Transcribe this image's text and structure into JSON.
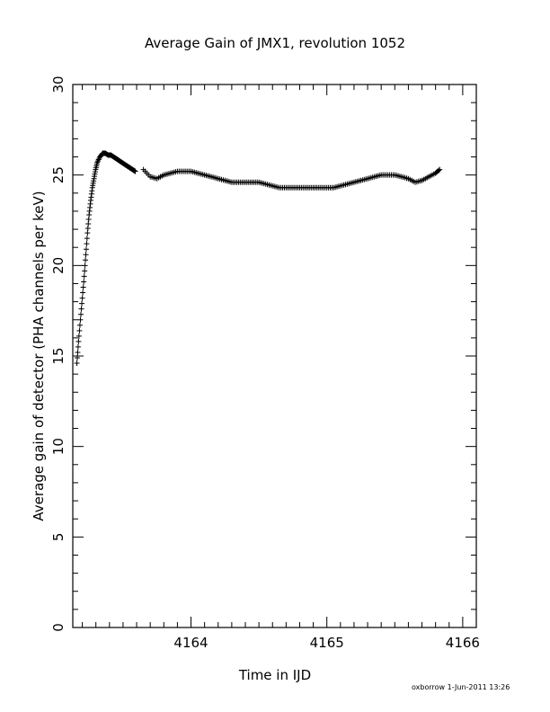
{
  "chart_data": {
    "type": "scatter",
    "title": "Average Gain of JMX1, revolution 1052",
    "xlabel": "Time in IJD",
    "ylabel": "Average gain of detector (PHA channels per keV)",
    "xlim": [
      4163.13,
      4166.1
    ],
    "ylim": [
      0,
      30
    ],
    "x_ticks": [
      4164,
      4165,
      4166
    ],
    "x_tick_labels": [
      "4164",
      "4165",
      "4166"
    ],
    "y_ticks": [
      0,
      5,
      10,
      15,
      20,
      25,
      30
    ],
    "y_tick_labels": [
      "0",
      "5",
      "10",
      "15",
      "20",
      "25",
      "30"
    ],
    "marker": "+",
    "grid": false,
    "series": [
      {
        "x": [
          4163.16,
          4163.172,
          4163.186,
          4163.2,
          4163.214,
          4163.226,
          4163.238,
          4163.25,
          4163.262,
          4163.274,
          4163.286,
          4163.298,
          4163.31,
          4163.33,
          4163.35,
          4163.37,
          4163.39,
          4163.41,
          4163.43,
          4163.45,
          4163.47,
          4163.49,
          4163.51,
          4163.53,
          4163.55,
          4163.57,
          4163.59
        ],
        "y": [
          14.6,
          15.8,
          17.0,
          18.2,
          19.4,
          20.6,
          21.8,
          22.8,
          23.6,
          24.3,
          24.8,
          25.3,
          25.7,
          26.0,
          26.2,
          26.2,
          26.1,
          26.1,
          26.0,
          25.9,
          25.8,
          25.7,
          25.6,
          25.5,
          25.4,
          25.3,
          25.2
        ]
      },
      {
        "x": [
          4163.65,
          4163.7,
          4163.75,
          4163.8,
          4163.85,
          4163.9,
          4163.95,
          4164.0,
          4164.05,
          4164.1,
          4164.15,
          4164.2,
          4164.25,
          4164.3,
          4164.35,
          4164.4,
          4164.45,
          4164.5,
          4164.55,
          4164.6,
          4164.65,
          4164.7,
          4164.75,
          4164.8,
          4164.85,
          4164.9,
          4164.95,
          4165.0,
          4165.05,
          4165.1,
          4165.15,
          4165.2,
          4165.25,
          4165.3,
          4165.35,
          4165.4,
          4165.45,
          4165.5,
          4165.55,
          4165.6,
          4165.65,
          4165.7,
          4165.75,
          4165.8,
          4165.83
        ],
        "y": [
          25.3,
          24.9,
          24.8,
          25.0,
          25.1,
          25.2,
          25.2,
          25.2,
          25.1,
          25.0,
          24.9,
          24.8,
          24.7,
          24.6,
          24.6,
          24.6,
          24.6,
          24.6,
          24.5,
          24.4,
          24.3,
          24.3,
          24.3,
          24.3,
          24.3,
          24.3,
          24.3,
          24.3,
          24.3,
          24.4,
          24.5,
          24.6,
          24.7,
          24.8,
          24.9,
          25.0,
          25.0,
          25.0,
          24.9,
          24.8,
          24.6,
          24.7,
          24.9,
          25.1,
          25.3
        ]
      }
    ]
  },
  "footer": "oxborrow  1-Jun-2011 13:26"
}
